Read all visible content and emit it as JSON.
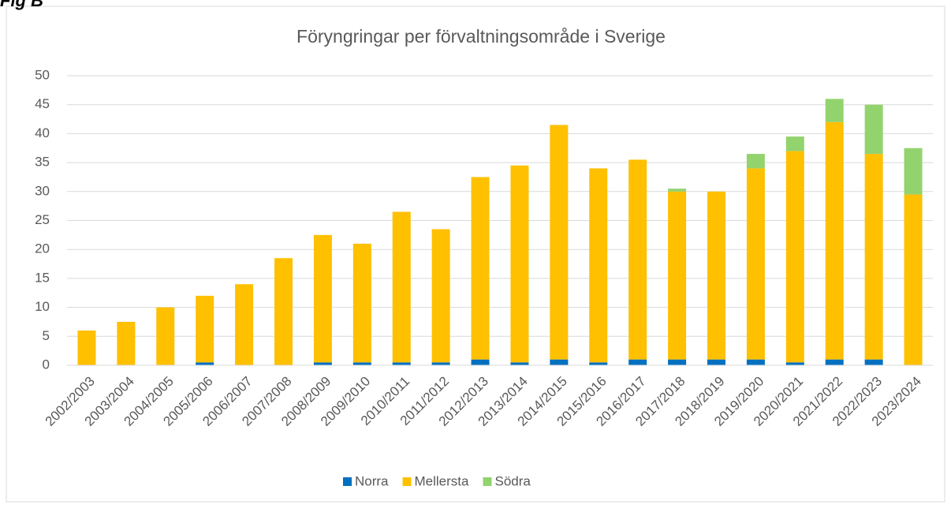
{
  "figure_label": "Fig B",
  "chart_data": {
    "type": "stacked_bar",
    "title": "Föryngringar per förvaltningsområde i Sverige",
    "categories": [
      "2002/2003",
      "2003/2004",
      "2004/2005",
      "2005/2006",
      "2006/2007",
      "2007/2008",
      "2008/2009",
      "2009/2010",
      "2010/2011",
      "2011/2012",
      "2012/2013",
      "2013/2014",
      "2014/2015",
      "2015/2016",
      "2016/2017",
      "2017/2018",
      "2018/2019",
      "2019/2020",
      "2020/2021",
      "2021/2022",
      "2022/2023",
      "2023/2024"
    ],
    "series": [
      {
        "name": "Norra",
        "color": "#0070c0",
        "values": [
          0,
          0,
          0,
          0.5,
          0,
          0,
          0.5,
          0.5,
          0.5,
          0.5,
          1,
          0.5,
          1,
          0.5,
          1,
          1,
          1,
          1,
          0.5,
          1,
          1,
          0
        ]
      },
      {
        "name": "Mellersta",
        "color": "#ffc000",
        "values": [
          6,
          7.5,
          10,
          11.5,
          14,
          18.5,
          22,
          20.5,
          26,
          23,
          31.5,
          34,
          40.5,
          33.5,
          34.5,
          29,
          29,
          33,
          36.5,
          41,
          35.5,
          29.5
        ]
      },
      {
        "name": "Södra",
        "color": "#92d36e",
        "values": [
          0,
          0,
          0,
          0,
          0,
          0,
          0,
          0,
          0,
          0,
          0,
          0,
          0,
          0,
          0,
          0.5,
          0,
          2.5,
          2.5,
          4,
          8.5,
          8
        ]
      }
    ],
    "ylim": [
      0,
      50
    ],
    "yticks": [
      0,
      5,
      10,
      15,
      20,
      25,
      30,
      35,
      40,
      45,
      50
    ],
    "grid": true,
    "legend": "bottom"
  }
}
